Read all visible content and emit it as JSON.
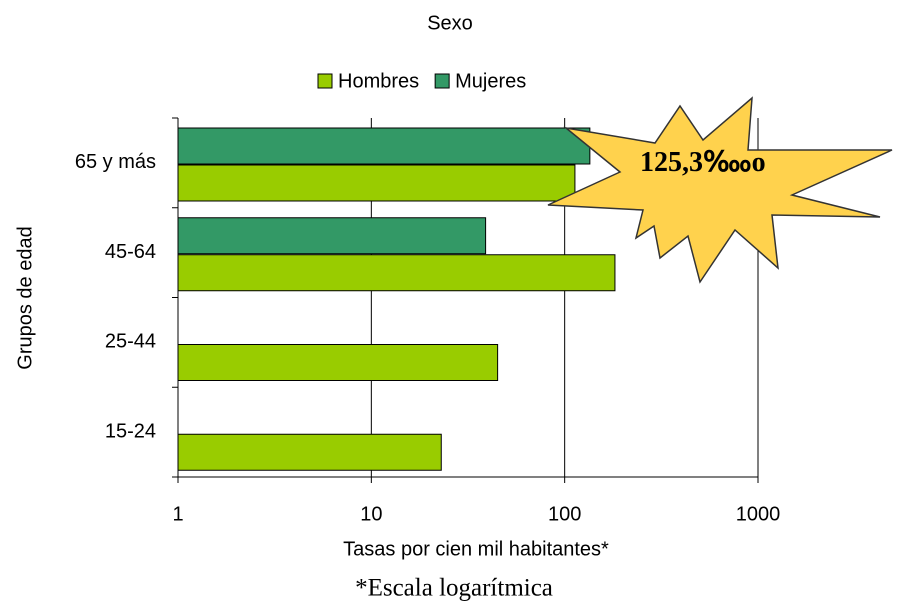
{
  "chart_data": {
    "type": "bar",
    "orientation": "horizontal",
    "title": "Sexo",
    "categories": [
      "65 y más",
      "45-64",
      "25-44",
      "15-24"
    ],
    "series": [
      {
        "name": "Hombres",
        "color": "#99cc00",
        "values": [
          113,
          182,
          45,
          23
        ]
      },
      {
        "name": "Mujeres",
        "color": "#339966",
        "values": [
          135,
          39,
          null,
          null
        ]
      }
    ],
    "xlim": [
      1,
      1000
    ],
    "xticks": [
      1,
      10,
      100,
      1000
    ],
    "log_x": true,
    "grid": true,
    "x_label": "Tasas por cien mil habitantes*",
    "y_label": "Grupos de edad",
    "note": "*Escala logarítmica",
    "annotation": "125,3‱o",
    "legend": "top"
  }
}
